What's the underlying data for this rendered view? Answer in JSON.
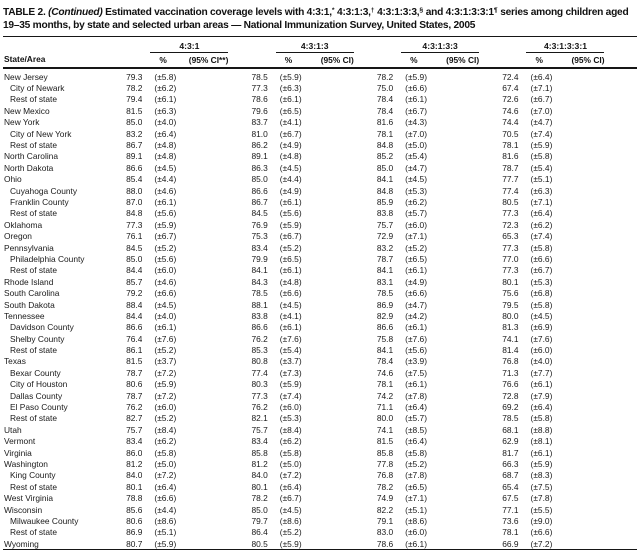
{
  "title": {
    "label": "TABLE 2.",
    "continued": "(Continued)",
    "s1": " Estimated vaccination coverage levels with 4:3:1,",
    "sup1": "*",
    "s2": " 4:3:1:3,",
    "sup2": "†",
    "s3": " 4:3:1:3:3,",
    "sup3": "§",
    "s4": " and 4:3:1:3:3:1",
    "sup4": "¶",
    "s5": " series among children aged 19–35 months, by state and selected urban areas — National Immunization Survey, United States, 2005"
  },
  "table": {
    "state_col_header": "State/Area",
    "groups": [
      {
        "label": "4:3:1",
        "pct_header": "%",
        "ci_header": "(95% CI**)"
      },
      {
        "label": "4:3:1:3",
        "pct_header": "%",
        "ci_header": "(95% CI)"
      },
      {
        "label": "4:3:1:3:3",
        "pct_header": "%",
        "ci_header": "(95% CI)"
      },
      {
        "label": "4:3:1:3:3:1",
        "pct_header": "%",
        "ci_header": "(95% CI)"
      }
    ],
    "rows": [
      {
        "name": "New Jersey",
        "indent": false,
        "values": [
          "79.3",
          "(±5.8)",
          "78.5",
          "(±5.9)",
          "78.2",
          "(±5.9)",
          "72.4",
          "(±6.4)"
        ]
      },
      {
        "name": "City of Newark",
        "indent": true,
        "values": [
          "78.2",
          "(±6.2)",
          "77.3",
          "(±6.3)",
          "75.0",
          "(±6.6)",
          "67.4",
          "(±7.1)"
        ]
      },
      {
        "name": "Rest of state",
        "indent": true,
        "values": [
          "79.4",
          "(±6.1)",
          "78.6",
          "(±6.1)",
          "78.4",
          "(±6.1)",
          "72.6",
          "(±6.7)"
        ]
      },
      {
        "name": "New Mexico",
        "indent": false,
        "values": [
          "81.5",
          "(±6.3)",
          "79.6",
          "(±6.5)",
          "78.4",
          "(±6.7)",
          "74.6",
          "(±7.0)"
        ]
      },
      {
        "name": "New York",
        "indent": false,
        "values": [
          "85.0",
          "(±4.0)",
          "83.7",
          "(±4.1)",
          "81.6",
          "(±4.3)",
          "74.4",
          "(±4.7)"
        ]
      },
      {
        "name": "City of New York",
        "indent": true,
        "values": [
          "83.2",
          "(±6.4)",
          "81.0",
          "(±6.7)",
          "78.1",
          "(±7.0)",
          "70.5",
          "(±7.4)"
        ]
      },
      {
        "name": "Rest of state",
        "indent": true,
        "values": [
          "86.7",
          "(±4.8)",
          "86.2",
          "(±4.9)",
          "84.8",
          "(±5.0)",
          "78.1",
          "(±5.9)"
        ]
      },
      {
        "name": "North Carolina",
        "indent": false,
        "values": [
          "89.1",
          "(±4.8)",
          "89.1",
          "(±4.8)",
          "85.2",
          "(±5.4)",
          "81.6",
          "(±5.8)"
        ]
      },
      {
        "name": "North Dakota",
        "indent": false,
        "values": [
          "86.6",
          "(±4.5)",
          "86.3",
          "(±4.5)",
          "85.0",
          "(±4.7)",
          "78.7",
          "(±5.4)"
        ]
      },
      {
        "name": "Ohio",
        "indent": false,
        "values": [
          "85.4",
          "(±4.4)",
          "85.0",
          "(±4.4)",
          "84.1",
          "(±4.5)",
          "77.7",
          "(±5.1)"
        ]
      },
      {
        "name": "Cuyahoga County",
        "indent": true,
        "values": [
          "88.0",
          "(±4.6)",
          "86.6",
          "(±4.9)",
          "84.8",
          "(±5.3)",
          "77.4",
          "(±6.3)"
        ]
      },
      {
        "name": "Franklin County",
        "indent": true,
        "values": [
          "87.0",
          "(±6.1)",
          "86.7",
          "(±6.1)",
          "85.9",
          "(±6.2)",
          "80.5",
          "(±7.1)"
        ]
      },
      {
        "name": "Rest of state",
        "indent": true,
        "values": [
          "84.8",
          "(±5.6)",
          "84.5",
          "(±5.6)",
          "83.8",
          "(±5.7)",
          "77.3",
          "(±6.4)"
        ]
      },
      {
        "name": "Oklahoma",
        "indent": false,
        "values": [
          "77.3",
          "(±5.9)",
          "76.9",
          "(±5.9)",
          "75.7",
          "(±6.0)",
          "72.3",
          "(±6.2)"
        ]
      },
      {
        "name": "Oregon",
        "indent": false,
        "values": [
          "76.1",
          "(±6.7)",
          "75.3",
          "(±6.7)",
          "72.9",
          "(±7.1)",
          "65.3",
          "(±7.4)"
        ]
      },
      {
        "name": "Pennsylvania",
        "indent": false,
        "values": [
          "84.5",
          "(±5.2)",
          "83.4",
          "(±5.2)",
          "83.2",
          "(±5.2)",
          "77.3",
          "(±5.8)"
        ]
      },
      {
        "name": "Philadelphia County",
        "indent": true,
        "values": [
          "85.0",
          "(±5.6)",
          "79.9",
          "(±6.5)",
          "78.7",
          "(±6.5)",
          "77.0",
          "(±6.6)"
        ]
      },
      {
        "name": "Rest of state",
        "indent": true,
        "values": [
          "84.4",
          "(±6.0)",
          "84.1",
          "(±6.1)",
          "84.1",
          "(±6.1)",
          "77.3",
          "(±6.7)"
        ]
      },
      {
        "name": "Rhode Island",
        "indent": false,
        "values": [
          "85.7",
          "(±4.6)",
          "84.3",
          "(±4.8)",
          "83.1",
          "(±4.9)",
          "80.1",
          "(±5.3)"
        ]
      },
      {
        "name": "South Carolina",
        "indent": false,
        "values": [
          "79.2",
          "(±6.6)",
          "78.5",
          "(±6.6)",
          "78.5",
          "(±6.6)",
          "75.6",
          "(±6.8)"
        ]
      },
      {
        "name": "South Dakota",
        "indent": false,
        "values": [
          "88.4",
          "(±4.5)",
          "88.1",
          "(±4.5)",
          "86.9",
          "(±4.7)",
          "79.5",
          "(±5.8)"
        ]
      },
      {
        "name": "Tennessee",
        "indent": false,
        "values": [
          "84.4",
          "(±4.0)",
          "83.8",
          "(±4.1)",
          "82.9",
          "(±4.2)",
          "80.0",
          "(±4.5)"
        ]
      },
      {
        "name": "Davidson County",
        "indent": true,
        "values": [
          "86.6",
          "(±6.1)",
          "86.6",
          "(±6.1)",
          "86.6",
          "(±6.1)",
          "81.3",
          "(±6.9)"
        ]
      },
      {
        "name": "Shelby County",
        "indent": true,
        "values": [
          "76.4",
          "(±7.6)",
          "76.2",
          "(±7.6)",
          "75.8",
          "(±7.6)",
          "74.1",
          "(±7.6)"
        ]
      },
      {
        "name": "Rest of state",
        "indent": true,
        "values": [
          "86.1",
          "(±5.2)",
          "85.3",
          "(±5.4)",
          "84.1",
          "(±5.6)",
          "81.4",
          "(±6.0)"
        ]
      },
      {
        "name": "Texas",
        "indent": false,
        "values": [
          "81.5",
          "(±3.7)",
          "80.8",
          "(±3.7)",
          "78.4",
          "(±3.9)",
          "76.8",
          "(±4.0)"
        ]
      },
      {
        "name": "Bexar County",
        "indent": true,
        "values": [
          "78.7",
          "(±7.2)",
          "77.4",
          "(±7.3)",
          "74.6",
          "(±7.5)",
          "71.3",
          "(±7.7)"
        ]
      },
      {
        "name": "City of Houston",
        "indent": true,
        "values": [
          "80.6",
          "(±5.9)",
          "80.3",
          "(±5.9)",
          "78.1",
          "(±6.1)",
          "76.6",
          "(±6.1)"
        ]
      },
      {
        "name": "Dallas County",
        "indent": true,
        "values": [
          "78.7",
          "(±7.2)",
          "77.3",
          "(±7.4)",
          "74.2",
          "(±7.8)",
          "72.8",
          "(±7.9)"
        ]
      },
      {
        "name": "El Paso County",
        "indent": true,
        "values": [
          "76.2",
          "(±6.0)",
          "76.2",
          "(±6.0)",
          "71.1",
          "(±6.4)",
          "69.2",
          "(±6.4)"
        ]
      },
      {
        "name": "Rest of state",
        "indent": true,
        "values": [
          "82.7",
          "(±5.2)",
          "82.1",
          "(±5.3)",
          "80.0",
          "(±5.7)",
          "78.5",
          "(±5.8)"
        ]
      },
      {
        "name": "Utah",
        "indent": false,
        "values": [
          "75.7",
          "(±8.4)",
          "75.7",
          "(±8.4)",
          "74.1",
          "(±8.5)",
          "68.1",
          "(±8.8)"
        ]
      },
      {
        "name": "Vermont",
        "indent": false,
        "values": [
          "83.4",
          "(±6.2)",
          "83.4",
          "(±6.2)",
          "81.5",
          "(±6.4)",
          "62.9",
          "(±8.1)"
        ]
      },
      {
        "name": "Virginia",
        "indent": false,
        "values": [
          "86.0",
          "(±5.8)",
          "85.8",
          "(±5.8)",
          "85.8",
          "(±5.8)",
          "81.7",
          "(±6.1)"
        ]
      },
      {
        "name": "Washington",
        "indent": false,
        "values": [
          "81.2",
          "(±5.0)",
          "81.2",
          "(±5.0)",
          "77.8",
          "(±5.2)",
          "66.3",
          "(±5.9)"
        ]
      },
      {
        "name": "King County",
        "indent": true,
        "values": [
          "84.0",
          "(±7.2)",
          "84.0",
          "(±7.2)",
          "76.8",
          "(±7.8)",
          "68.7",
          "(±8.3)"
        ]
      },
      {
        "name": "Rest of state",
        "indent": true,
        "values": [
          "80.1",
          "(±6.4)",
          "80.1",
          "(±6.4)",
          "78.2",
          "(±6.5)",
          "65.4",
          "(±7.5)"
        ]
      },
      {
        "name": "West Virginia",
        "indent": false,
        "values": [
          "78.8",
          "(±6.6)",
          "78.2",
          "(±6.7)",
          "74.9",
          "(±7.1)",
          "67.5",
          "(±7.8)"
        ]
      },
      {
        "name": "Wisconsin",
        "indent": false,
        "values": [
          "85.6",
          "(±4.4)",
          "85.0",
          "(±4.5)",
          "82.2",
          "(±5.1)",
          "77.1",
          "(±5.5)"
        ]
      },
      {
        "name": "Milwaukee County",
        "indent": true,
        "values": [
          "80.6",
          "(±8.6)",
          "79.7",
          "(±8.6)",
          "79.1",
          "(±8.6)",
          "73.6",
          "(±9.0)"
        ]
      },
      {
        "name": "Rest of state",
        "indent": true,
        "values": [
          "86.9",
          "(±5.1)",
          "86.4",
          "(±5.2)",
          "83.0",
          "(±6.0)",
          "78.1",
          "(±6.6)"
        ]
      },
      {
        "name": "Wyoming",
        "indent": false,
        "values": [
          "80.7",
          "(±5.9)",
          "80.5",
          "(±5.9)",
          "78.6",
          "(±6.1)",
          "66.9",
          "(±7.2)"
        ]
      }
    ]
  }
}
